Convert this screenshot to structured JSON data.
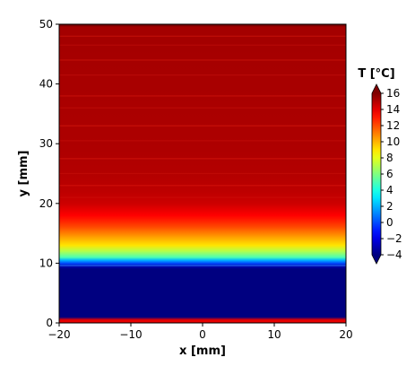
{
  "chart_data": {
    "type": "heatmap",
    "xlabel": "x [mm]",
    "ylabel": "y [mm]",
    "xlim": [
      -20,
      20
    ],
    "ylim": [
      0,
      50
    ],
    "x_ticks": [
      -20,
      -10,
      0,
      10,
      20
    ],
    "x_tick_labels": [
      "−20",
      "−10",
      "0",
      "10",
      "20"
    ],
    "y_ticks": [
      0,
      10,
      20,
      30,
      40,
      50
    ],
    "y_tick_labels": [
      "0",
      "10",
      "20",
      "30",
      "40",
      "50"
    ],
    "colorbar": {
      "label": "T [°C]",
      "range": [
        -4,
        16
      ],
      "ticks": [
        -4,
        -2,
        0,
        2,
        4,
        6,
        8,
        10,
        12,
        14,
        16
      ],
      "tick_labels": [
        "−4",
        "−2",
        "0",
        "2",
        "4",
        "6",
        "8",
        "10",
        "12",
        "14",
        "16"
      ],
      "extend": "both",
      "colormap": "jet"
    },
    "temperature_profile": {
      "description_axis": "y",
      "y": [
        0,
        0.5,
        1,
        5,
        9,
        9.5,
        10,
        10.5,
        11,
        12,
        13,
        14,
        15,
        16,
        17,
        18,
        19,
        20,
        22,
        25,
        30,
        40,
        50
      ],
      "T": [
        14,
        14,
        -4,
        -4,
        -4,
        -3,
        0,
        2,
        5,
        7,
        9,
        10,
        11,
        12,
        12.8,
        13.5,
        14,
        14.5,
        14.8,
        15,
        15.1,
        15.2,
        15.3
      ]
    }
  }
}
